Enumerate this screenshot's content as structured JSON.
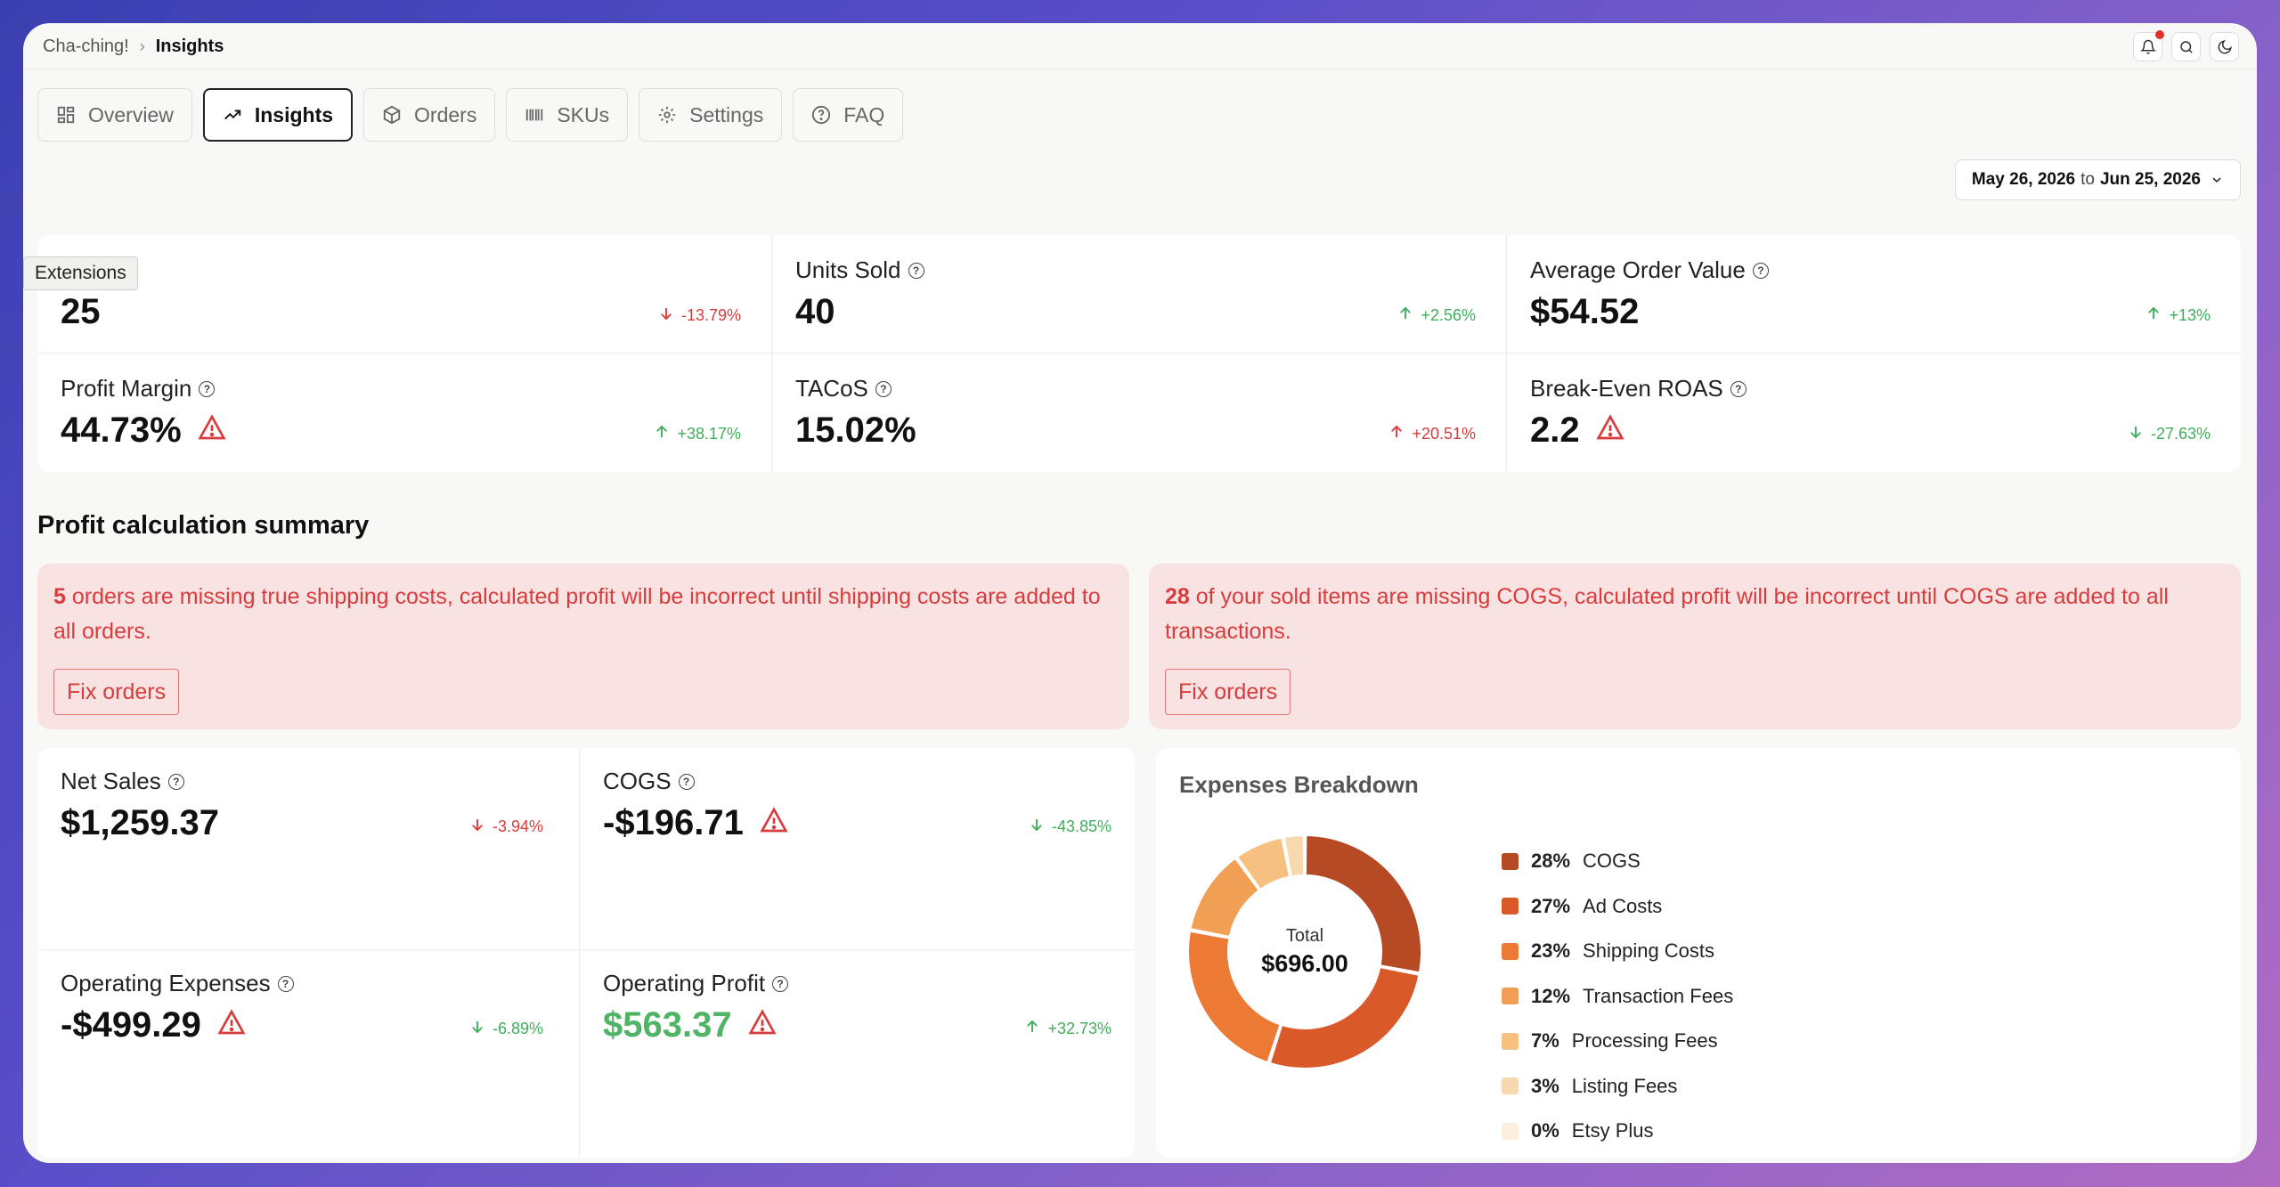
{
  "breadcrumb": {
    "app": "Cha-ching!",
    "current": "Insights"
  },
  "tabs": [
    {
      "label": "Overview",
      "icon": "grid-icon"
    },
    {
      "label": "Insights",
      "icon": "trending-up-icon",
      "active": true
    },
    {
      "label": "Orders",
      "icon": "box-icon"
    },
    {
      "label": "SKUs",
      "icon": "barcode-icon"
    },
    {
      "label": "Settings",
      "icon": "gear-icon"
    },
    {
      "label": "FAQ",
      "icon": "help-circle-icon"
    }
  ],
  "date_range": {
    "start": "May 26, 2026",
    "to": "to",
    "end": "Jun 25, 2026"
  },
  "tooltip": "Extensions",
  "metrics": [
    {
      "label": "",
      "value": "25",
      "change": "-13.79%",
      "direction": "down",
      "tone": "down",
      "warning": false
    },
    {
      "label": "Units Sold",
      "value": "40",
      "change": "+2.56%",
      "direction": "up",
      "tone": "up",
      "warning": false
    },
    {
      "label": "Average Order Value",
      "value": "$54.52",
      "change": "+13%",
      "direction": "up",
      "tone": "up",
      "warning": false
    },
    {
      "label": "Profit Margin",
      "value": "44.73%",
      "change": "+38.17%",
      "direction": "up",
      "tone": "up",
      "warning": true
    },
    {
      "label": "TACoS",
      "value": "15.02%",
      "change": "+20.51%",
      "direction": "up",
      "tone": "down",
      "warning": false
    },
    {
      "label": "Break-Even ROAS",
      "value": "2.2",
      "change": "-27.63%",
      "direction": "down",
      "tone": "up",
      "warning": true
    }
  ],
  "summary": {
    "title": "Profit calculation summary",
    "alerts": [
      {
        "count": "5",
        "text": " orders are missing true shipping costs, calculated profit will be incorrect until shipping costs are added to all orders.",
        "button": "Fix orders"
      },
      {
        "count": "28",
        "text": " of your sold items are missing COGS, calculated profit will be incorrect until COGS are added to all transactions.",
        "button": "Fix orders"
      }
    ]
  },
  "financials": [
    {
      "label": "Net Sales",
      "value": "$1,259.37",
      "change": "-3.94%",
      "direction": "down",
      "tone": "down",
      "warning": false
    },
    {
      "label": "COGS",
      "value": "-$196.71",
      "change": "-43.85%",
      "direction": "down",
      "tone": "up",
      "warning": true
    },
    {
      "label": "Operating Expenses",
      "value": "-$499.29",
      "change": "-6.89%",
      "direction": "down",
      "tone": "up",
      "warning": true
    },
    {
      "label": "Operating Profit",
      "value": "$563.37",
      "change": "+32.73%",
      "direction": "up",
      "tone": "up",
      "warning": true,
      "positive_value": true
    }
  ],
  "breakdown": {
    "title": "Expenses Breakdown",
    "total_label": "Total",
    "total_value": "$696.00",
    "items": [
      {
        "pct": "28%",
        "label": "COGS",
        "value": 28,
        "color": "#b64a24"
      },
      {
        "pct": "27%",
        "label": "Ad Costs",
        "value": 27,
        "color": "#d95a28"
      },
      {
        "pct": "23%",
        "label": "Shipping Costs",
        "value": 23,
        "color": "#ec7a35"
      },
      {
        "pct": "12%",
        "label": "Transaction Fees",
        "value": 12,
        "color": "#f09f55"
      },
      {
        "pct": "7%",
        "label": "Processing Fees",
        "value": 7,
        "color": "#f5c080"
      },
      {
        "pct": "3%",
        "label": "Listing Fees",
        "value": 3,
        "color": "#f8d8ae"
      },
      {
        "pct": "0%",
        "label": "Etsy Plus",
        "value": 0,
        "color": "#fbeedd"
      }
    ]
  }
}
